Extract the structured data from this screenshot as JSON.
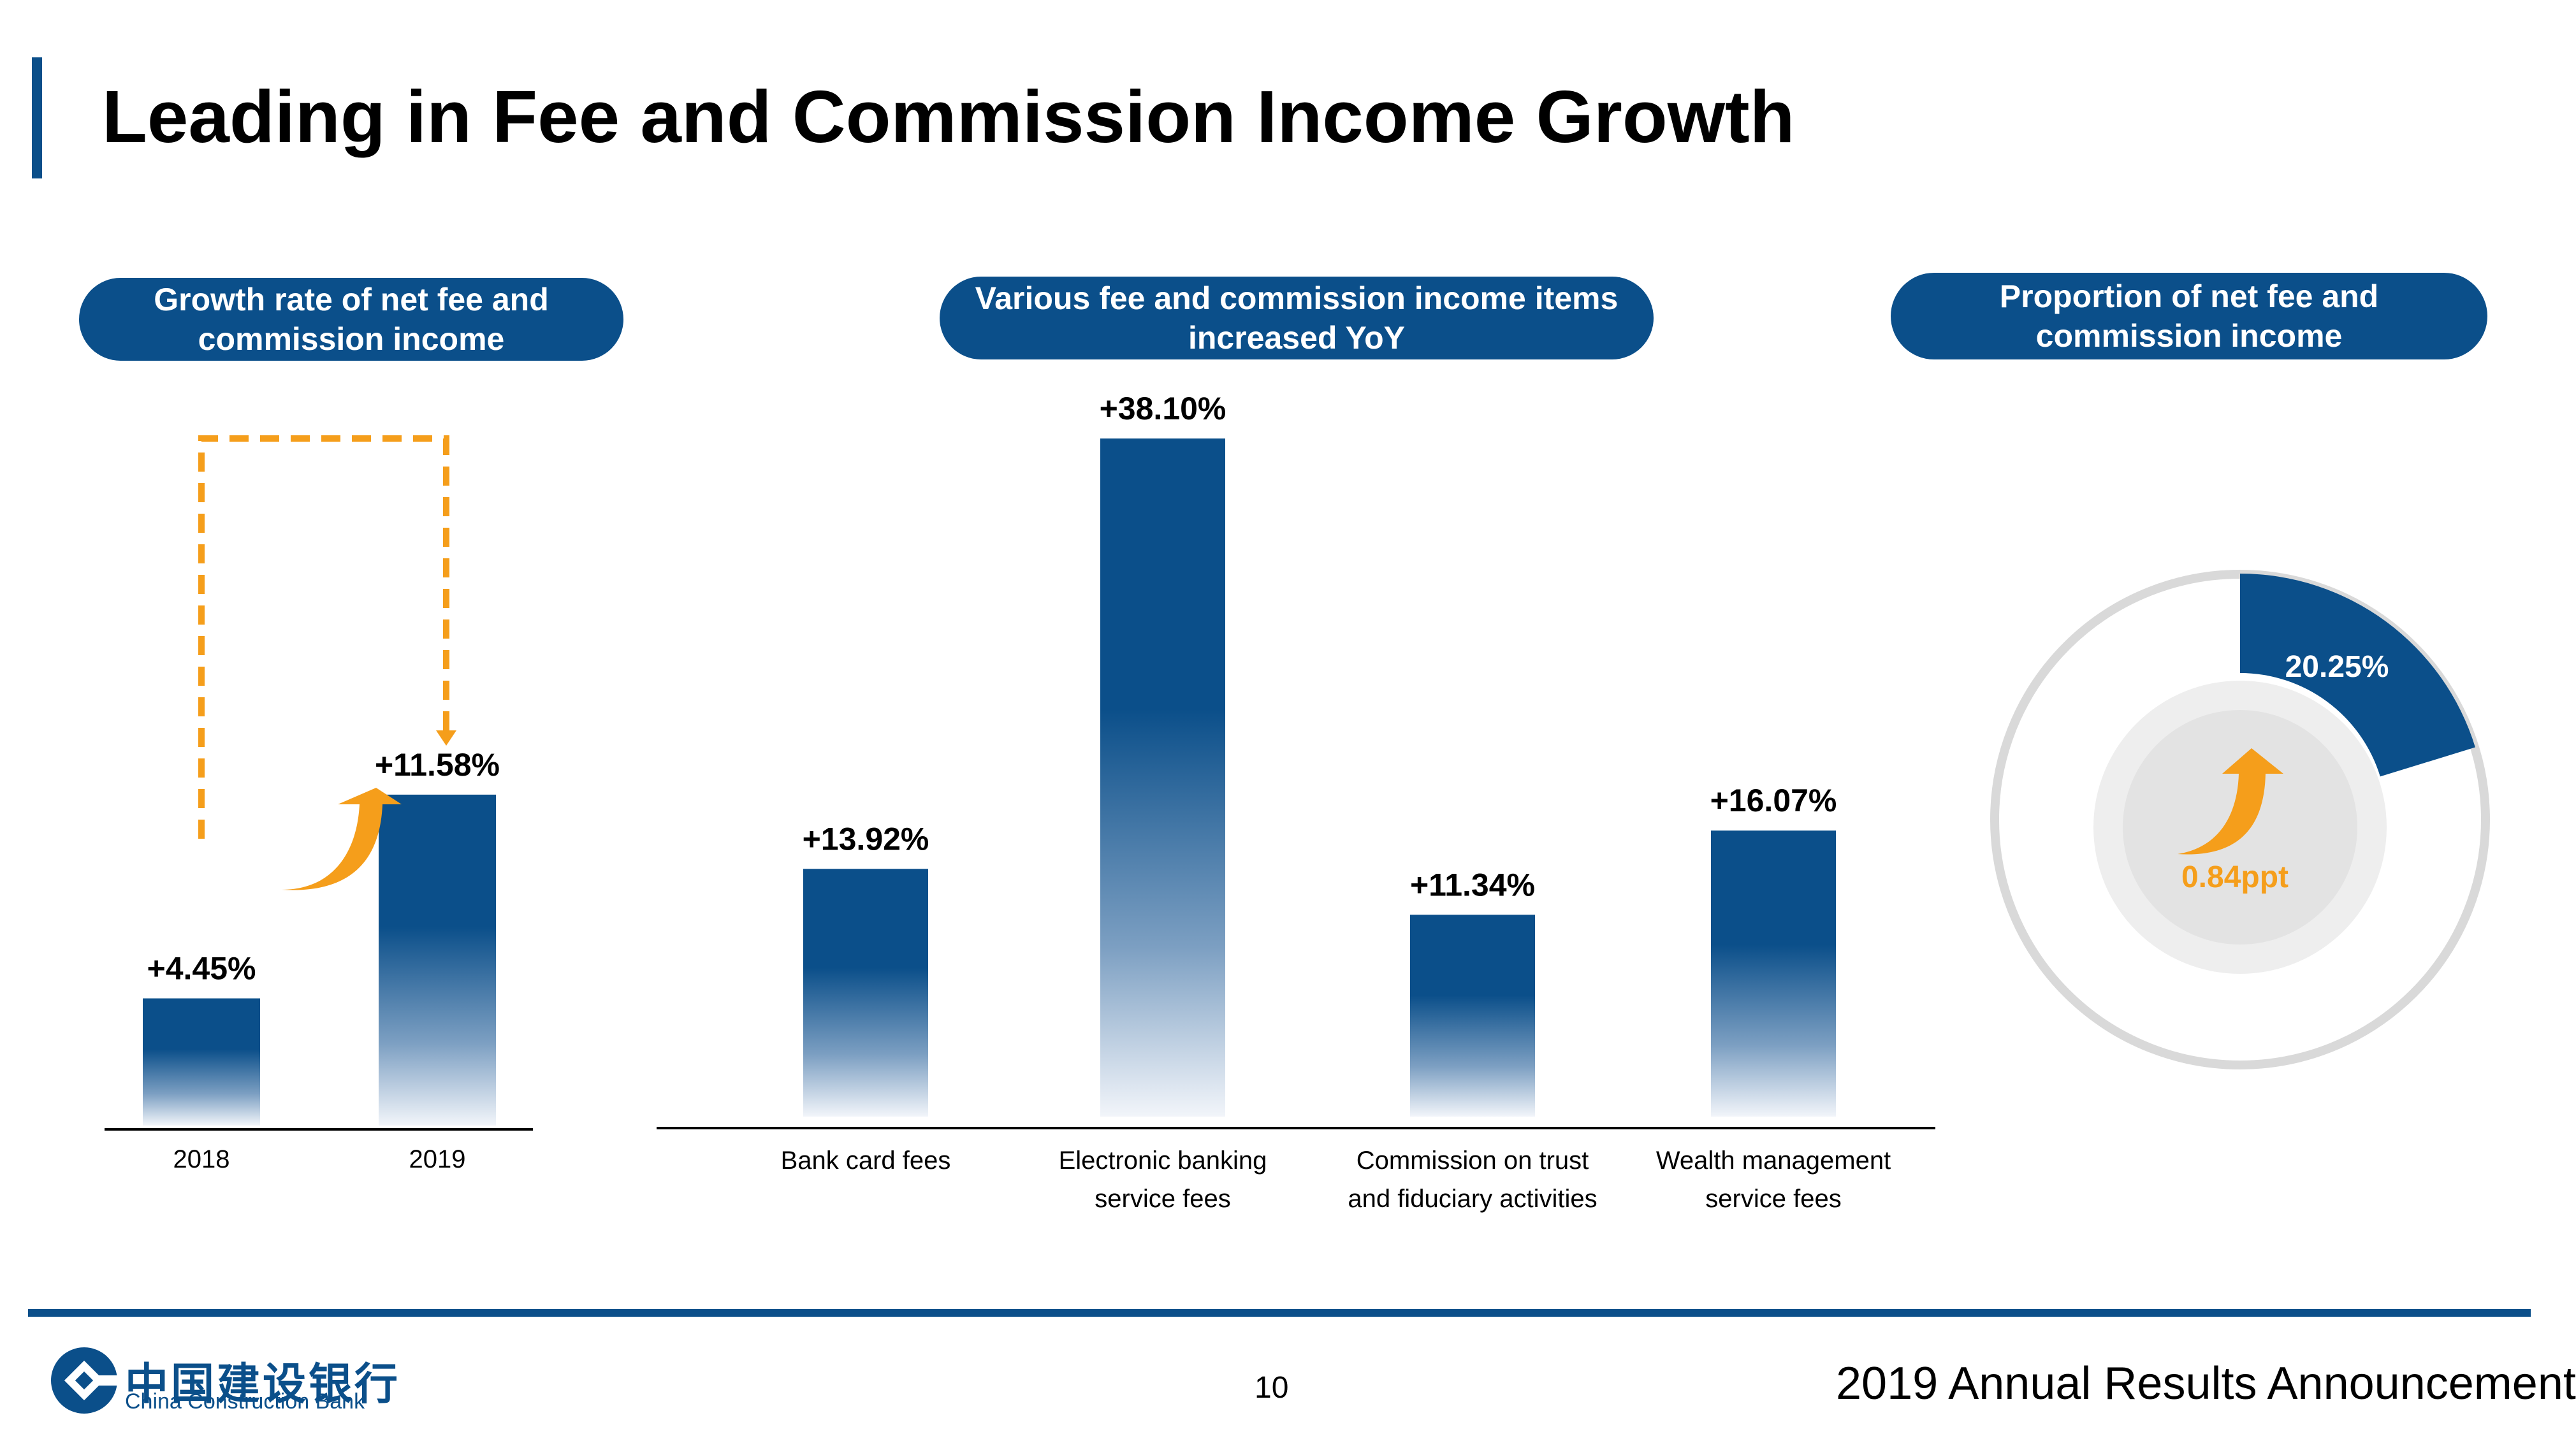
{
  "slide": {
    "title": "Leading in Fee and Commission Income Growth",
    "page_number": "10",
    "footer": "2019 Annual Results Announcement",
    "logo": {
      "chinese": "中国建设银行",
      "english": "China Construction Bank"
    }
  },
  "colors": {
    "primary": "#0b4f8a",
    "accent": "#f59e1b",
    "ring": "#d9d9d9",
    "inner": "#e6e6e6"
  },
  "chart_data": [
    {
      "type": "bar",
      "title": "Growth rate of net fee and commission income",
      "title_lines": [
        "Growth rate of net fee and",
        "commission income"
      ],
      "categories": [
        "2018",
        "2019"
      ],
      "values": [
        4.45,
        11.58
      ],
      "value_labels": [
        "+4.45%",
        "+11.58%"
      ],
      "unit": "%",
      "ylim": [
        0,
        12
      ]
    },
    {
      "type": "bar",
      "title": "Various fee and commission income items increased YoY",
      "title_lines": [
        "Various fee and commission income items",
        "increased YoY"
      ],
      "categories": [
        "Bank card fees",
        "Electronic banking service fees",
        "Commission on trust and fiduciary activities",
        "Wealth management service fees"
      ],
      "category_lines": [
        [
          "Bank card fees"
        ],
        [
          "Electronic banking",
          "service fees"
        ],
        [
          "Commission on trust",
          "and fiduciary activities"
        ],
        [
          "Wealth management",
          "service fees"
        ]
      ],
      "values": [
        13.92,
        38.1,
        11.34,
        16.07
      ],
      "value_labels": [
        "+13.92%",
        "+38.10%",
        "+11.34%",
        "+16.07%"
      ],
      "unit": "%",
      "ylim": [
        0,
        38.1
      ]
    },
    {
      "type": "pie",
      "title": "Proportion of net fee and commission income",
      "title_lines": [
        "Proportion of net fee and",
        "commission income"
      ],
      "values": [
        20.25
      ],
      "value_labels": [
        "20.25%"
      ],
      "change_label": "0.84ppt",
      "unit": "%"
    }
  ]
}
